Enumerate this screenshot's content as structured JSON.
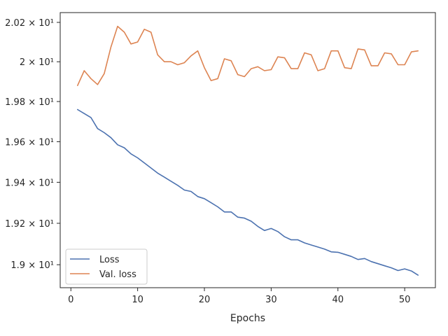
{
  "chart_data": {
    "type": "line",
    "title": "",
    "xlabel": "Epochs",
    "ylabel": "",
    "y_scale": "log",
    "xlim": [
      -1.6,
      54.6
    ],
    "ylim": [
      18.89,
      20.25
    ],
    "grid": false,
    "legend_position": "lower-left",
    "x": [
      1,
      2,
      3,
      4,
      5,
      6,
      7,
      8,
      9,
      10,
      11,
      12,
      13,
      14,
      15,
      16,
      17,
      18,
      19,
      20,
      21,
      22,
      23,
      24,
      25,
      26,
      27,
      28,
      29,
      30,
      31,
      32,
      33,
      34,
      35,
      36,
      37,
      38,
      39,
      40,
      41,
      42,
      43,
      44,
      45,
      46,
      47,
      48,
      49,
      50,
      51,
      52
    ],
    "x_ticks": [
      {
        "value": 0,
        "label": "0"
      },
      {
        "value": 10,
        "label": "10"
      },
      {
        "value": 20,
        "label": "20"
      },
      {
        "value": 30,
        "label": "30"
      },
      {
        "value": 40,
        "label": "40"
      },
      {
        "value": 50,
        "label": "50"
      }
    ],
    "y_ticks": [
      {
        "value": 19.0,
        "label": "1.9 × 10¹"
      },
      {
        "value": 19.2,
        "label": "1.92 × 10¹"
      },
      {
        "value": 19.4,
        "label": "1.94 × 10¹"
      },
      {
        "value": 19.6,
        "label": "1.96 × 10¹"
      },
      {
        "value": 19.8,
        "label": "1.98 × 10¹"
      },
      {
        "value": 20.0,
        "label": "2 × 10¹"
      },
      {
        "value": 20.2,
        "label": "2.02 × 10¹"
      }
    ],
    "series": [
      {
        "name": "Loss",
        "color": "#4c72b0",
        "values": [
          19.76,
          19.74,
          19.72,
          19.665,
          19.645,
          19.62,
          19.585,
          19.57,
          19.54,
          19.52,
          19.495,
          19.47,
          19.445,
          19.425,
          19.405,
          19.385,
          19.362,
          19.355,
          19.33,
          19.32,
          19.3,
          19.28,
          19.255,
          19.255,
          19.23,
          19.225,
          19.21,
          19.185,
          19.165,
          19.175,
          19.16,
          19.135,
          19.12,
          19.12,
          19.105,
          19.095,
          19.085,
          19.075,
          19.062,
          19.06,
          19.05,
          19.04,
          19.025,
          19.03,
          19.015,
          19.005,
          18.995,
          18.985,
          18.972,
          18.98,
          18.97,
          18.95
        ]
      },
      {
        "name": "Val. loss",
        "color": "#dd8452",
        "values": [
          19.88,
          19.955,
          19.915,
          19.885,
          19.94,
          20.075,
          20.18,
          20.15,
          20.09,
          20.1,
          20.165,
          20.15,
          20.035,
          20.0,
          20.0,
          19.985,
          19.995,
          20.03,
          20.055,
          19.97,
          19.905,
          19.915,
          20.015,
          20.005,
          19.935,
          19.925,
          19.965,
          19.975,
          19.955,
          19.96,
          20.025,
          20.02,
          19.965,
          19.965,
          20.045,
          20.035,
          19.955,
          19.965,
          20.055,
          20.055,
          19.97,
          19.965,
          20.065,
          20.06,
          19.98,
          19.98,
          20.045,
          20.04,
          19.985,
          19.985,
          20.05,
          20.055
        ]
      }
    ]
  }
}
